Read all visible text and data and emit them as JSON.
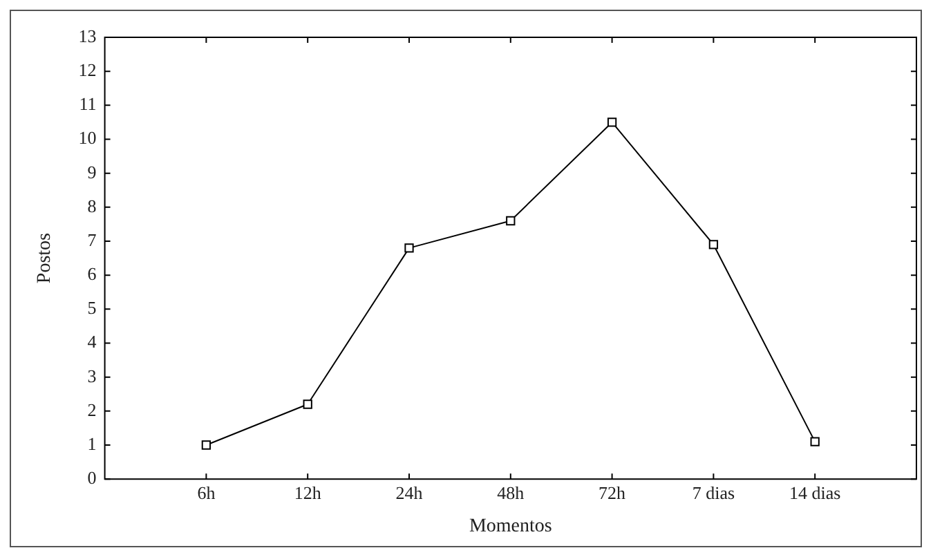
{
  "chart_data": {
    "type": "line",
    "xlabel": "Momentos",
    "ylabel": "Postos",
    "categories": [
      "6h",
      "12h",
      "24h",
      "48h",
      "72h",
      "7 dias",
      "14 dias"
    ],
    "series": [
      {
        "color": "#000000",
        "values": [
          1.0,
          2.2,
          6.8,
          7.6,
          10.5,
          6.9,
          1.1
        ]
      }
    ],
    "ylim": [
      0,
      13
    ],
    "yticks": [
      0,
      1,
      2,
      3,
      4,
      5,
      6,
      7,
      8,
      9,
      10,
      11,
      12,
      13
    ],
    "grid": false,
    "legend": false,
    "marker": "square",
    "line_style": "solid"
  }
}
